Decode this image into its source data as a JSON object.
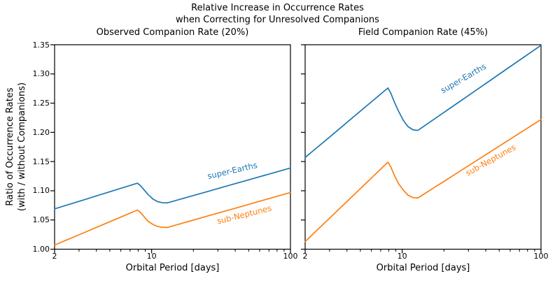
{
  "figure": {
    "suptitle_line1": "Relative Increase in Occurrence Rates",
    "suptitle_line2": "when Correcting for Unresolved Companions",
    "ylabel_line1": "Ratio of Occurrence Rates",
    "ylabel_line2": "(with / without Companions)",
    "background": "#ffffff",
    "text_color": "#000000"
  },
  "chart_data": [
    {
      "type": "line",
      "title": "Observed Companion Rate (20%)",
      "xlabel": "Orbital Period [days]",
      "xscale": "log",
      "xlim": [
        2,
        100
      ],
      "ylim": [
        1.0,
        1.35
      ],
      "grid": false,
      "show_ytick_labels": true,
      "xticks": {
        "values": [
          2,
          10,
          100
        ],
        "labels": [
          "2",
          "10",
          "100"
        ]
      },
      "xminor": [
        3,
        4,
        5,
        6,
        7,
        8,
        9,
        20,
        30,
        40,
        50,
        60,
        70,
        80,
        90
      ],
      "yticks": {
        "values": [
          1.0,
          1.05,
          1.1,
          1.15,
          1.2,
          1.25,
          1.3,
          1.35
        ],
        "labels": [
          "1.00",
          "1.05",
          "1.10",
          "1.15",
          "1.20",
          "1.25",
          "1.30",
          "1.35"
        ]
      },
      "x": [
        2,
        2.4,
        2.9,
        3.5,
        4.2,
        5,
        6,
        6.8,
        7.4,
        7.9,
        8.3,
        8.8,
        9.4,
        10.2,
        11,
        12,
        13,
        14.5,
        17,
        20,
        25,
        32,
        40,
        50,
        65,
        80,
        100
      ],
      "series": [
        {
          "name": "super-Earths",
          "color": "#1f77b4",
          "y": [
            1.069,
            1.0748,
            1.0809,
            1.0869,
            1.0928,
            1.0984,
            1.1042,
            1.1082,
            1.1109,
            1.113,
            1.109,
            1.102,
            1.094,
            1.086,
            1.0815,
            1.0795,
            1.0793,
            1.0825,
            1.0872,
            1.0919,
            1.0984,
            1.1057,
            1.1122,
            1.1187,
            1.1264,
            1.1325,
            1.139
          ],
          "label": {
            "text": "super-Earths",
            "x": 38.2,
            "y": 1.135,
            "rotation": -13
          }
        },
        {
          "name": "sub-Neptunes",
          "color": "#ff7f0e",
          "y": [
            1.007,
            1.015,
            1.0232,
            1.0314,
            1.0394,
            1.047,
            1.055,
            1.0605,
            1.0642,
            1.067,
            1.063,
            1.056,
            1.048,
            1.0425,
            1.039,
            1.0375,
            1.0372,
            1.0404,
            1.0451,
            1.0498,
            1.0564,
            1.0636,
            1.0701,
            1.0767,
            1.0844,
            1.0905,
            1.097
          ],
          "label": {
            "text": "sub-Neptunes",
            "x": 46.5,
            "y": 1.059,
            "rotation": -14
          }
        }
      ]
    },
    {
      "type": "line",
      "title": "Field Companion Rate (45%)",
      "xlabel": "Orbital Period [days]",
      "xscale": "log",
      "xlim": [
        2,
        100
      ],
      "ylim": [
        1.0,
        1.35
      ],
      "grid": false,
      "show_ytick_labels": false,
      "xticks": {
        "values": [
          2,
          10,
          100
        ],
        "labels": [
          "2",
          "10",
          "100"
        ]
      },
      "xminor": [
        3,
        4,
        5,
        6,
        7,
        8,
        9,
        20,
        30,
        40,
        50,
        60,
        70,
        80,
        90
      ],
      "yticks": {
        "values": [
          1.0,
          1.05,
          1.1,
          1.15,
          1.2,
          1.25,
          1.3,
          1.35
        ],
        "labels": [
          "1.00",
          "1.05",
          "1.10",
          "1.15",
          "1.20",
          "1.25",
          "1.30",
          "1.35"
        ]
      },
      "x": [
        2,
        2.4,
        2.9,
        3.5,
        4.2,
        5,
        6,
        6.8,
        7.4,
        7.9,
        8.3,
        8.8,
        9.4,
        10.2,
        11,
        12,
        13,
        14.5,
        17,
        20,
        25,
        32,
        40,
        50,
        65,
        80,
        100
      ],
      "series": [
        {
          "name": "super-Earths",
          "color": "#1f77b4",
          "y": [
            1.157,
            1.1728,
            1.189,
            1.2053,
            1.2213,
            1.2364,
            1.2522,
            1.263,
            1.2704,
            1.276,
            1.2665,
            1.2515,
            1.2365,
            1.2205,
            1.21,
            1.2042,
            1.2035,
            1.2113,
            1.2226,
            1.2342,
            1.2501,
            1.2677,
            1.2836,
            1.2996,
            1.3183,
            1.3331,
            1.349
          ],
          "label": {
            "text": "super-Earths",
            "x": 27.6,
            "y": 1.292,
            "rotation": -30
          }
        },
        {
          "name": "sub-Neptunes",
          "color": "#ff7f0e",
          "y": [
            1.013,
            1.0311,
            1.0498,
            1.0684,
            1.0865,
            1.1037,
            1.1218,
            1.1342,
            1.1425,
            1.149,
            1.1405,
            1.126,
            1.1125,
            1.101,
            1.0925,
            1.0882,
            1.0878,
            1.095,
            1.1055,
            1.1161,
            1.1308,
            1.1471,
            1.1617,
            1.1764,
            1.1937,
            1.2074,
            1.222
          ],
          "label": {
            "text": "sub-Neptunes",
            "x": 43.3,
            "y": 1.153,
            "rotation": -29
          }
        }
      ]
    }
  ]
}
